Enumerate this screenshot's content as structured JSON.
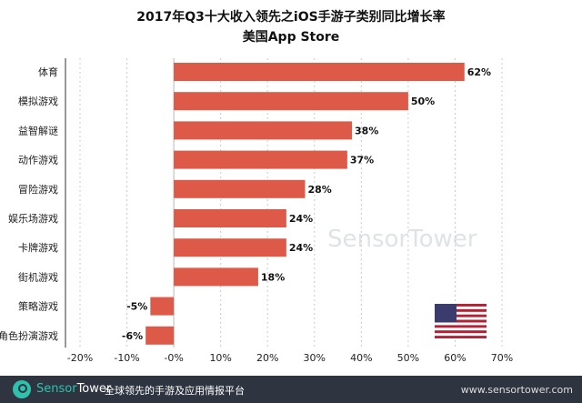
{
  "chart_data": {
    "type": "bar",
    "orientation": "horizontal",
    "title": "2017年Q3十大收入领先之iOS手游子类别同比增长率",
    "subtitle": "美国App Store",
    "categories": [
      "体育",
      "模拟游戏",
      "益智解谜",
      "动作游戏",
      "冒险游戏",
      "娱乐场游戏",
      "卡牌游戏",
      "街机游戏",
      "策略游戏",
      "角色扮演游戏"
    ],
    "values": [
      62,
      50,
      38,
      37,
      28,
      24,
      24,
      18,
      -5,
      -6
    ],
    "data_labels": [
      "62%",
      "50%",
      "38%",
      "37%",
      "28%",
      "24%",
      "24%",
      "18%",
      "-5%",
      "-6%"
    ],
    "xlim": [
      -20,
      70
    ],
    "xticks": [
      "-20%",
      "-10%",
      "-0%",
      "10%",
      "20%",
      "30%",
      "40%",
      "50%",
      "60%",
      "70%"
    ],
    "grid": true,
    "bar_color": "#dd5a48"
  },
  "watermark": "SensorTower",
  "flag": "us-flag",
  "footer": {
    "brand_a": "Sensor",
    "brand_b": "Tower",
    "slogan": "全球领先的手游及应用情报平台",
    "url": "www.sensortower.com"
  }
}
